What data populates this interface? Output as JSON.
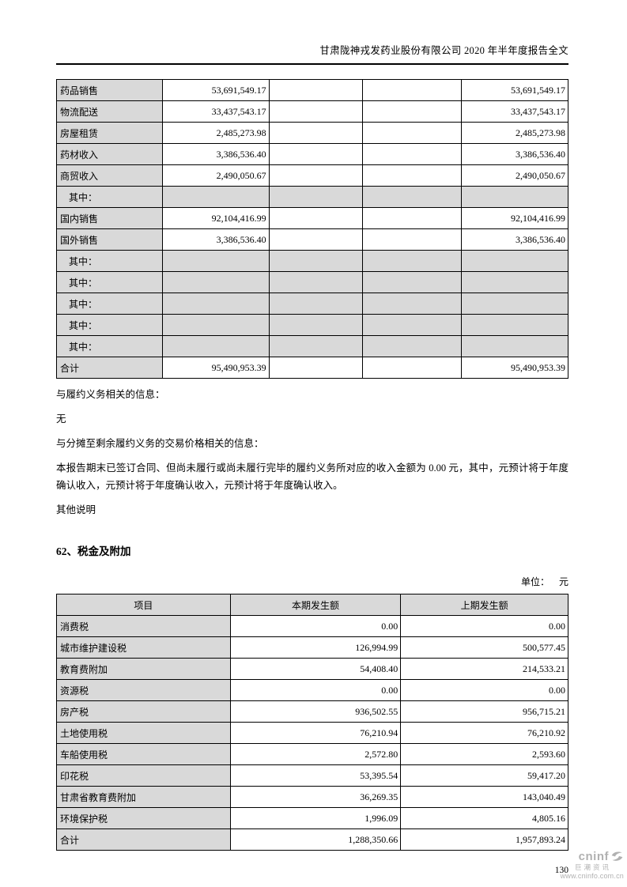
{
  "page": {
    "header_title": "甘肃陇神戎发药业股份有限公司 2020 年半年度报告全文",
    "page_number": "130"
  },
  "revenue_table": {
    "rows": [
      {
        "label": "药品销售",
        "cells": [
          "53,691,549.17",
          "",
          "",
          "53,691,549.17"
        ],
        "gray": false,
        "indent": false
      },
      {
        "label": "物流配送",
        "cells": [
          "33,437,543.17",
          "",
          "",
          "33,437,543.17"
        ],
        "gray": false,
        "indent": false
      },
      {
        "label": "房屋租赁",
        "cells": [
          "2,485,273.98",
          "",
          "",
          "2,485,273.98"
        ],
        "gray": false,
        "indent": false
      },
      {
        "label": "药材收入",
        "cells": [
          "3,386,536.40",
          "",
          "",
          "3,386,536.40"
        ],
        "gray": false,
        "indent": false
      },
      {
        "label": "商贸收入",
        "cells": [
          "2,490,050.67",
          "",
          "",
          "2,490,050.67"
        ],
        "gray": false,
        "indent": false
      },
      {
        "label": "其中：",
        "cells": [
          "",
          "",
          "",
          ""
        ],
        "gray": true,
        "indent": true
      },
      {
        "label": "国内销售",
        "cells": [
          "92,104,416.99",
          "",
          "",
          "92,104,416.99"
        ],
        "gray": false,
        "indent": false
      },
      {
        "label": "国外销售",
        "cells": [
          "3,386,536.40",
          "",
          "",
          "3,386,536.40"
        ],
        "gray": false,
        "indent": false
      },
      {
        "label": "其中：",
        "cells": [
          "",
          "",
          "",
          ""
        ],
        "gray": true,
        "indent": true
      },
      {
        "label": "其中：",
        "cells": [
          "",
          "",
          "",
          ""
        ],
        "gray": true,
        "indent": true
      },
      {
        "label": "其中：",
        "cells": [
          "",
          "",
          "",
          ""
        ],
        "gray": true,
        "indent": true
      },
      {
        "label": "其中：",
        "cells": [
          "",
          "",
          "",
          ""
        ],
        "gray": true,
        "indent": true
      },
      {
        "label": "其中：",
        "cells": [
          "",
          "",
          "",
          ""
        ],
        "gray": true,
        "indent": true
      },
      {
        "label": "合计",
        "cells": [
          "95,490,953.39",
          "",
          "",
          "95,490,953.39"
        ],
        "gray": false,
        "indent": false
      }
    ]
  },
  "notes": {
    "line1": "与履约义务相关的信息：",
    "line2": "无",
    "line3": "与分摊至剩余履约义务的交易价格相关的信息：",
    "line4": "本报告期末已签订合同、但尚未履行或尚未履行完毕的履约义务所对应的收入金额为 0.00 元，其中，元预计将于年度确认收入，元预计将于年度确认收入，元预计将于年度确认收入。",
    "line5": "其他说明"
  },
  "section": {
    "heading": "62、税金及附加",
    "unit_label": "单位：",
    "unit_value": "元"
  },
  "tax_table": {
    "headers": [
      "项目",
      "本期发生额",
      "上期发生额"
    ],
    "rows": [
      {
        "label": "消费税",
        "current": "0.00",
        "prior": "0.00"
      },
      {
        "label": "城市维护建设税",
        "current": "126,994.99",
        "prior": "500,577.45"
      },
      {
        "label": "教育费附加",
        "current": "54,408.40",
        "prior": "214,533.21"
      },
      {
        "label": "资源税",
        "current": "0.00",
        "prior": "0.00"
      },
      {
        "label": "房产税",
        "current": "936,502.55",
        "prior": "956,715.21"
      },
      {
        "label": "土地使用税",
        "current": "76,210.94",
        "prior": "76,210.92"
      },
      {
        "label": "车船使用税",
        "current": "2,572.80",
        "prior": "2,593.60"
      },
      {
        "label": "印花税",
        "current": "53,395.54",
        "prior": "59,417.20"
      },
      {
        "label": "甘肃省教育费附加",
        "current": "36,269.35",
        "prior": "143,040.49"
      },
      {
        "label": "环境保护税",
        "current": "1,996.09",
        "prior": "4,805.16"
      },
      {
        "label": "合计",
        "current": "1,288,350.66",
        "prior": "1,957,893.24"
      }
    ]
  },
  "footer_logo": {
    "brand": "cninf",
    "brand_cn": "巨潮资讯",
    "url": "www.cninfo.com.cn",
    "color": "#b1b1b1"
  }
}
